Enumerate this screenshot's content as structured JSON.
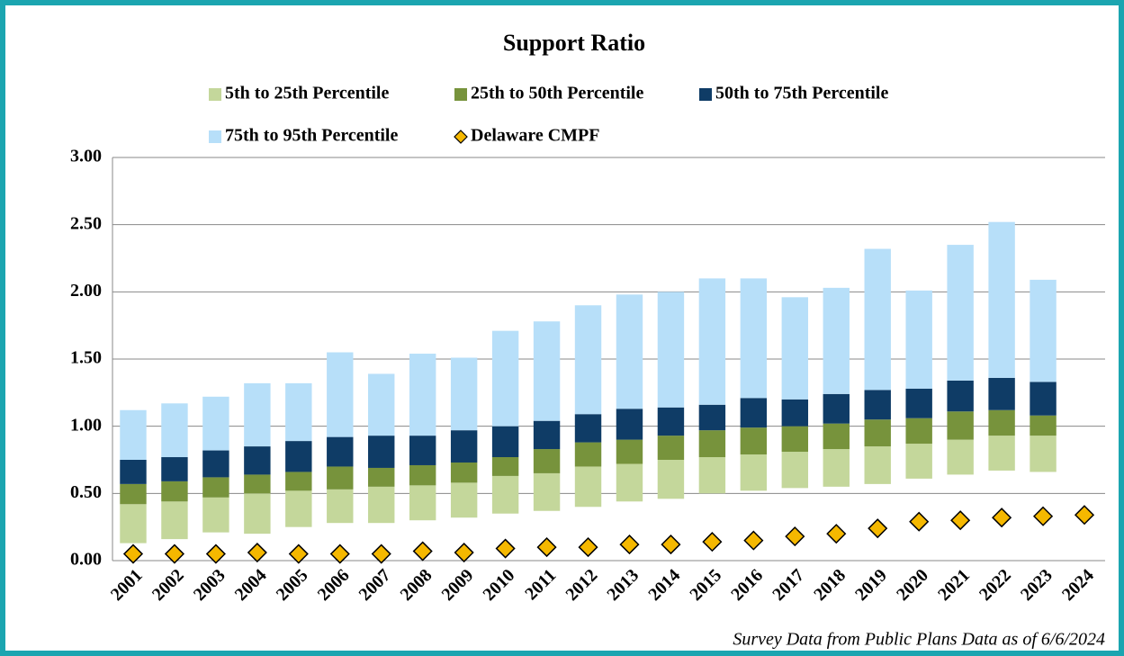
{
  "chart_data": {
    "type": "bar",
    "stacked": true,
    "title": "Support Ratio",
    "note": "Survey Data from Public Plans Data as of 6/6/2024",
    "categories": [
      "2001",
      "2002",
      "2003",
      "2004",
      "2005",
      "2006",
      "2007",
      "2008",
      "2009",
      "2010",
      "2011",
      "2012",
      "2013",
      "2014",
      "2015",
      "2016",
      "2017",
      "2018",
      "2019",
      "2020",
      "2021",
      "2022",
      "2023",
      "2024"
    ],
    "series": [
      {
        "color": "none",
        "values": [
          0.13,
          0.16,
          0.21,
          0.2,
          0.25,
          0.28,
          0.28,
          0.3,
          0.32,
          0.35,
          0.37,
          0.4,
          0.44,
          0.46,
          0.5,
          0.52,
          0.54,
          0.55,
          0.57,
          0.61,
          0.64,
          0.67,
          0.66,
          null
        ]
      },
      {
        "name": "5th to 25th Percentile",
        "color": "#c4d79b",
        "values": [
          0.29,
          0.28,
          0.26,
          0.3,
          0.27,
          0.25,
          0.27,
          0.26,
          0.26,
          0.28,
          0.28,
          0.3,
          0.28,
          0.29,
          0.27,
          0.27,
          0.27,
          0.28,
          0.28,
          0.26,
          0.26,
          0.26,
          0.27,
          null
        ]
      },
      {
        "name": "25th to 50th Percentile",
        "color": "#77933c",
        "values": [
          0.15,
          0.15,
          0.15,
          0.14,
          0.14,
          0.17,
          0.14,
          0.15,
          0.15,
          0.14,
          0.18,
          0.18,
          0.18,
          0.18,
          0.2,
          0.2,
          0.19,
          0.19,
          0.2,
          0.19,
          0.21,
          0.19,
          0.15,
          null
        ]
      },
      {
        "name": "50th to 75th Percentile",
        "color": "#0f3c66",
        "values": [
          0.18,
          0.18,
          0.2,
          0.21,
          0.23,
          0.22,
          0.24,
          0.22,
          0.24,
          0.23,
          0.21,
          0.21,
          0.23,
          0.21,
          0.19,
          0.22,
          0.2,
          0.22,
          0.22,
          0.22,
          0.23,
          0.24,
          0.25,
          null
        ]
      },
      {
        "name": "75th to 95th Percentile",
        "color": "#b7dff9",
        "values": [
          0.37,
          0.4,
          0.4,
          0.47,
          0.43,
          0.63,
          0.46,
          0.61,
          0.54,
          0.71,
          0.74,
          0.81,
          0.85,
          0.86,
          0.94,
          0.89,
          0.76,
          0.79,
          1.05,
          0.73,
          1.01,
          1.16,
          0.76,
          null
        ]
      },
      {
        "name": "Delaware CMPF",
        "color": "#f5b800",
        "marker": "diamond",
        "values": [
          0.05,
          0.05,
          0.05,
          0.06,
          0.05,
          0.05,
          0.05,
          0.07,
          0.06,
          0.09,
          0.1,
          0.1,
          0.12,
          0.12,
          0.14,
          0.15,
          0.18,
          0.2,
          0.24,
          0.29,
          0.3,
          0.32,
          0.33,
          0.34
        ]
      }
    ],
    "ylim": [
      0,
      3
    ],
    "yticks": [
      {
        "value": 0,
        "label": "0.00"
      },
      {
        "value": 0.5,
        "label": "0.50"
      },
      {
        "value": 1,
        "label": "1.00"
      },
      {
        "value": 1.5,
        "label": "1.50"
      },
      {
        "value": 2,
        "label": "2.00"
      },
      {
        "value": 2.5,
        "label": "2.50"
      },
      {
        "value": 3,
        "label": "3.00"
      }
    ],
    "grid": true
  }
}
